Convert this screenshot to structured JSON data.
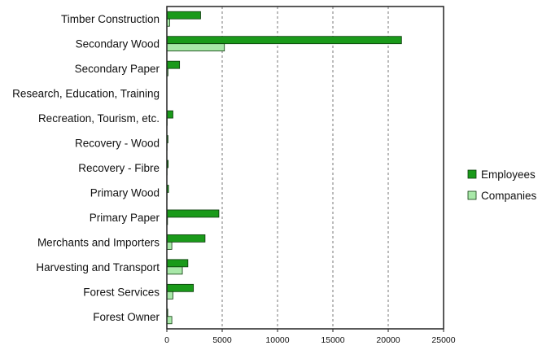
{
  "chart_data": {
    "type": "bar",
    "orientation": "horizontal",
    "categories": [
      "Timber Construction",
      "Secondary Wood",
      "Secondary Paper",
      "Research, Education, Training",
      "Recreation, Tourism, etc.",
      "Recovery - Wood",
      "Recovery - Fibre",
      "Primary Wood",
      "Primary Paper",
      "Merchants and Importers",
      "Harvesting and Transport",
      "Forest Services",
      "Forest Owner"
    ],
    "series": [
      {
        "name": "Employees",
        "color": "#1a9a1a",
        "values": [
          3050,
          21200,
          1150,
          0,
          550,
          100,
          120,
          150,
          4700,
          3450,
          1900,
          2400,
          80
        ]
      },
      {
        "name": "Companies",
        "color": "#a8e8a8",
        "values": [
          250,
          5200,
          100,
          0,
          30,
          20,
          20,
          20,
          60,
          450,
          1400,
          550,
          450
        ]
      }
    ],
    "xlim": [
      0,
      25000
    ],
    "xticks": [
      0,
      5000,
      10000,
      15000,
      20000,
      25000
    ],
    "xtick_labels": [
      "0",
      "5000",
      "10000",
      "15000",
      "20000",
      "25000"
    ],
    "grid": "vertical dashed",
    "legend_position": "right",
    "title": "",
    "xlabel": "",
    "ylabel": ""
  }
}
